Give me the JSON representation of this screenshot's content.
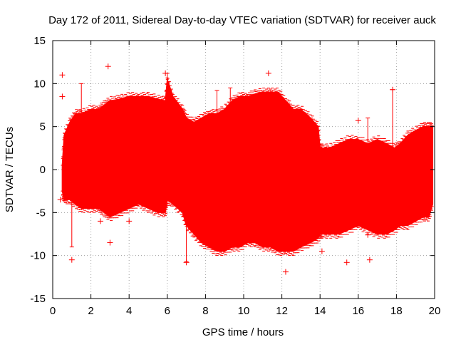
{
  "chart_data": {
    "type": "scatter",
    "title": "Day 172 of 2011, Sidereal Day-to-day VTEC variation (SDTVAR) for receiver auck",
    "xlabel": "GPS time / hours",
    "ylabel": "SDTVAR / TECUs",
    "xlim": [
      0,
      20
    ],
    "ylim": [
      -15,
      15
    ],
    "xticks": [
      0,
      2,
      4,
      6,
      8,
      10,
      12,
      14,
      16,
      18,
      20
    ],
    "yticks": [
      -15,
      -10,
      -5,
      0,
      5,
      10,
      15
    ],
    "xtick_labels": [
      "0",
      "2",
      "4",
      "6",
      "8",
      "10",
      "12",
      "14",
      "16",
      "18",
      "20"
    ],
    "ytick_labels": [
      "-15",
      "-10",
      "-5",
      "0",
      "5",
      "10",
      "15"
    ],
    "grid": true,
    "series": [
      {
        "name": "SDTVAR",
        "color": "#ff0000",
        "marker": "plus-with-errorbars",
        "envelope": {
          "x": [
            0.5,
            0.6,
            0.9,
            1.2,
            1.5,
            2.0,
            2.4,
            2.7,
            3.0,
            3.5,
            4.0,
            4.5,
            5.0,
            5.5,
            5.9,
            6.0,
            6.3,
            6.8,
            7.0,
            7.4,
            7.8,
            8.2,
            8.6,
            9.0,
            9.4,
            9.8,
            10.2,
            10.6,
            11.0,
            11.4,
            11.8,
            12.2,
            12.6,
            13.0,
            13.5,
            13.9,
            14.0,
            14.1,
            14.5,
            15.0,
            15.5,
            16.0,
            16.5,
            17.0,
            17.5,
            17.9,
            18.2,
            18.6,
            19.0,
            19.4,
            19.7,
            19.9
          ],
          "upper": [
            0.5,
            4.0,
            5.5,
            6.5,
            6.5,
            7.0,
            7.0,
            7.5,
            8.0,
            8.2,
            8.5,
            8.5,
            8.5,
            8.2,
            8.0,
            10.5,
            8.5,
            7.0,
            6.0,
            5.5,
            6.0,
            6.5,
            6.5,
            7.0,
            8.0,
            8.5,
            8.5,
            8.8,
            9.0,
            9.0,
            9.0,
            8.0,
            7.0,
            7.0,
            6.0,
            5.0,
            2.5,
            2.5,
            2.5,
            3.0,
            3.5,
            3.5,
            3.0,
            3.5,
            3.0,
            2.5,
            3.0,
            4.0,
            4.5,
            5.0,
            5.0,
            5.0
          ],
          "lower": [
            -2.5,
            -3.5,
            -3.5,
            -4.0,
            -4.5,
            -4.5,
            -4.5,
            -5.0,
            -5.5,
            -5.0,
            -4.5,
            -4.0,
            -4.5,
            -5.0,
            -5.0,
            -3.5,
            -4.0,
            -5.0,
            -6.5,
            -7.5,
            -8.5,
            -9.0,
            -9.5,
            -9.5,
            -9.0,
            -9.0,
            -8.5,
            -8.5,
            -9.0,
            -9.0,
            -9.5,
            -9.5,
            -9.5,
            -9.0,
            -8.5,
            -8.0,
            -7.5,
            -7.5,
            -7.5,
            -7.5,
            -7.0,
            -6.5,
            -7.0,
            -7.5,
            -7.5,
            -7.0,
            -6.5,
            -6.5,
            -6.0,
            -5.5,
            -5.5,
            -4.0
          ]
        },
        "outliers": [
          {
            "x": 0.5,
            "y": 11.0
          },
          {
            "x": 0.5,
            "y": 8.5
          },
          {
            "x": 0.4,
            "y": -3.5
          },
          {
            "x": 1.0,
            "y": -10.5
          },
          {
            "x": 2.9,
            "y": 12.0
          },
          {
            "x": 2.5,
            "y": -6.0
          },
          {
            "x": 3.0,
            "y": -8.5
          },
          {
            "x": 4.0,
            "y": -6.0
          },
          {
            "x": 5.9,
            "y": 11.2
          },
          {
            "x": 7.0,
            "y": -10.8
          },
          {
            "x": 11.3,
            "y": 11.2
          },
          {
            "x": 12.2,
            "y": -11.9
          },
          {
            "x": 13.2,
            "y": 6.4
          },
          {
            "x": 14.1,
            "y": -9.5
          },
          {
            "x": 15.4,
            "y": -10.8
          },
          {
            "x": 16.0,
            "y": 5.7
          },
          {
            "x": 16.5,
            "y": -7.6
          },
          {
            "x": 16.6,
            "y": -10.5
          },
          {
            "x": 17.8,
            "y": 9.3
          }
        ],
        "spikes": [
          {
            "x": 1.0,
            "low": -9.0,
            "high": 5.0
          },
          {
            "x": 1.5,
            "low": -4.0,
            "high": 10.0
          },
          {
            "x": 6.0,
            "low": -3.0,
            "high": 11.2
          },
          {
            "x": 7.0,
            "low": -10.7,
            "high": -6.0
          },
          {
            "x": 8.6,
            "low": -5.0,
            "high": 9.2
          },
          {
            "x": 9.3,
            "low": 7.5,
            "high": 9.5
          },
          {
            "x": 13.0,
            "low": 5.5,
            "high": 7.0
          },
          {
            "x": 16.5,
            "low": 2.5,
            "high": 6.0
          },
          {
            "x": 17.8,
            "low": -2.0,
            "high": 9.3
          }
        ]
      }
    ]
  }
}
